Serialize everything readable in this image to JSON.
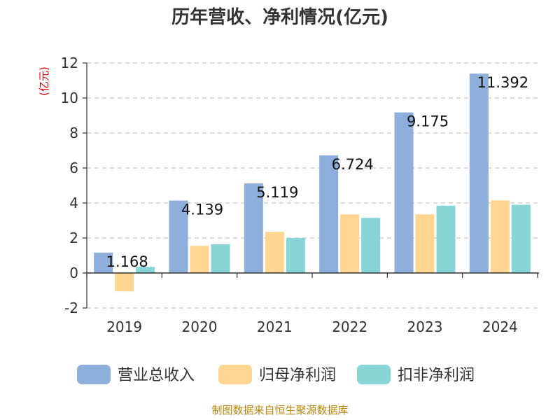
{
  "chart_data": {
    "type": "bar",
    "title": "历年营收、净利情况(亿元)",
    "ylabel": "(亿元)",
    "xlabel": "",
    "categories": [
      "2019",
      "2020",
      "2021",
      "2022",
      "2023",
      "2024"
    ],
    "ylim": [
      -2,
      12
    ],
    "yticks": [
      "12",
      "10",
      "8",
      "6",
      "4",
      "2",
      "0",
      "-2"
    ],
    "ytick_values": [
      12,
      10,
      8,
      6,
      4,
      2,
      0,
      -2
    ],
    "grid": true,
    "legend_position": "bottom",
    "series": [
      {
        "name": "营业总收入",
        "color": "#8eaedb",
        "values": [
          1.168,
          4.139,
          5.119,
          6.724,
          9.175,
          11.392
        ]
      },
      {
        "name": "归母净利润",
        "color": "#ffd591",
        "values": [
          -1.05,
          1.55,
          2.35,
          3.35,
          3.35,
          4.15
        ]
      },
      {
        "name": "扣非净利润",
        "color": "#88d5d8",
        "values": [
          0.35,
          1.65,
          2.0,
          3.15,
          3.85,
          3.9
        ]
      }
    ],
    "data_labels": [
      "1.168",
      "4.139",
      "5.119",
      "6.724",
      "9.175",
      "11.392"
    ]
  },
  "source": "制图数据来自恒生聚源数据库"
}
